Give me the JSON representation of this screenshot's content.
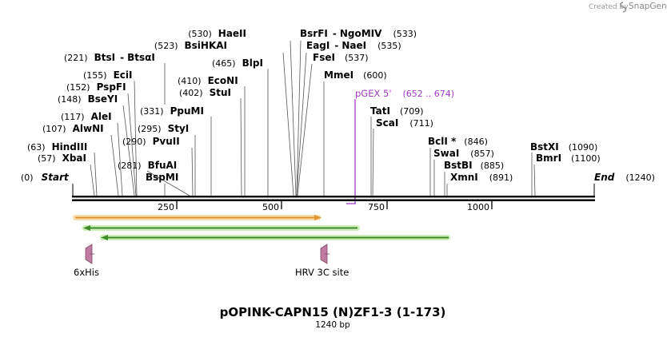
{
  "credit": {
    "text": "Created by",
    "brand": "SnapGene"
  },
  "map": {
    "total_bp": 1240,
    "title": "pOPINK-CAPN15 (N)ZF1-3 (1-173)",
    "subtitle": "1240 bp",
    "ticks": [
      "250",
      "500",
      "750",
      "1000"
    ],
    "ends": {
      "start": "Start",
      "start_pos": "(0)",
      "end": "End",
      "end_pos": "(1240)"
    }
  },
  "enzymes": [
    {
      "name": "HaeII",
      "pos": "(530)"
    },
    {
      "name": "BsrFI",
      "join": "-",
      "name2": "NgoMIV",
      "pos": "(533)"
    },
    {
      "name": "BsiHKAI",
      "pos": "(523)"
    },
    {
      "name": "EagI",
      "join": "-",
      "name2": "NaeI",
      "pos": "(535)"
    },
    {
      "name": "BtsI",
      "join": "-",
      "name2": "BtsαI",
      "pos": "(221)"
    },
    {
      "name": "FseI",
      "pos": "(537)"
    },
    {
      "name": "BlpI",
      "pos": "(465)"
    },
    {
      "name": "EciI",
      "pos": "(155)"
    },
    {
      "name": "MmeI",
      "pos": "(600)"
    },
    {
      "name": "PspFI",
      "pos": "(152)"
    },
    {
      "name": "EcoNI",
      "pos": "(410)"
    },
    {
      "name": "BseYI",
      "pos": "(148)"
    },
    {
      "name": "StuI",
      "pos": "(402)"
    },
    {
      "name": "PpuMI",
      "pos": "(331)"
    },
    {
      "name": "TatI",
      "pos": "(709)"
    },
    {
      "name": "AleI",
      "pos": "(117)"
    },
    {
      "name": "ScaI",
      "pos": "(711)"
    },
    {
      "name": "AlwNI",
      "pos": "(107)"
    },
    {
      "name": "StyI",
      "pos": "(295)"
    },
    {
      "name": "PvuII",
      "pos": "(290)"
    },
    {
      "name": "BclI *",
      "pos": "(846)"
    },
    {
      "name": "HindIII",
      "pos": "(63)"
    },
    {
      "name": "SwaI",
      "pos": "(857)"
    },
    {
      "name": "BstXI",
      "pos": "(1090)"
    },
    {
      "name": "XbaI",
      "pos": "(57)"
    },
    {
      "name": "BmrI",
      "pos": "(1100)"
    },
    {
      "name": "BstBI",
      "pos": "(885)"
    },
    {
      "name": "BfuAI",
      "pos": "(281)"
    },
    {
      "name": "XmnI",
      "pos": "(891)"
    },
    {
      "name": "BspMI",
      "pos": ""
    }
  ],
  "primer": {
    "name": "pGEX 5'",
    "range": "(652 .. 674)"
  },
  "features": [
    {
      "name": "6xHis"
    },
    {
      "name": "HRV 3C site"
    }
  ],
  "colors": {
    "primer": "#a23ac8",
    "orange_feature": "#f0a040",
    "green_feature": "#58c040",
    "site_marker": "#c07ca0",
    "backbone": "#000000"
  }
}
